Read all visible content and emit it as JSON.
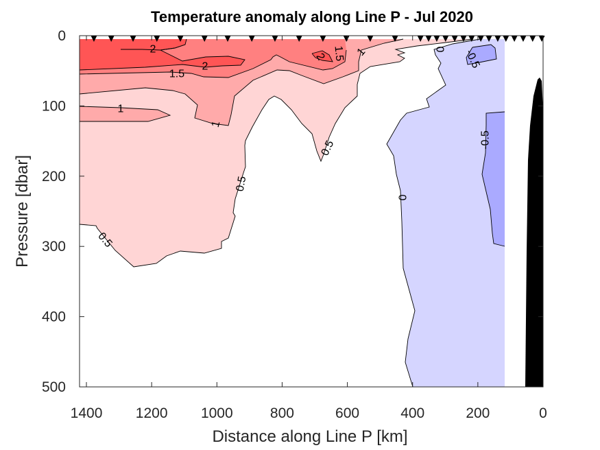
{
  "chart_data": {
    "type": "contour",
    "title": "Temperature anomaly along Line P - Jul 2020",
    "xlabel": "Distance along Line P [km]",
    "ylabel": "Pressure [dbar]",
    "xlim": [
      1417,
      0
    ],
    "x_reversed": true,
    "ylim": [
      0,
      500
    ],
    "y_reversed": true,
    "xticks": [
      "1400",
      "1200",
      "1000",
      "800",
      "600",
      "400",
      "200",
      "0"
    ],
    "yticks": [
      "0",
      "100",
      "200",
      "300",
      "400",
      "500"
    ],
    "levels": [
      -0.5,
      0,
      0.5,
      1,
      1.5,
      2
    ],
    "band_colors": {
      "below_-0.5": "#aaaaff",
      "-0.5_to_0": "#d5d5ff",
      "0_to_0.5": "#ffffff",
      "0.5_to_1": "#ffd5d5",
      "1_to_1.5": "#ffaaaa",
      "1.5_to_2": "#ff8080",
      "above_2": "#ff5555"
    },
    "bathymetry_color": "#000000",
    "station_marker": "down-triangle",
    "stations_km": [
      1377,
      1324,
      1257,
      1184,
      1112,
      1038,
      967,
      893,
      822,
      748,
      675,
      603,
      530,
      454,
      376,
      351,
      326,
      299,
      271,
      244,
      219,
      191,
      166,
      139,
      114,
      88,
      61,
      32,
      4
    ],
    "contour_labels": [
      {
        "text": "2"
      },
      {
        "text": "2"
      },
      {
        "text": "1.5"
      },
      {
        "text": "1"
      },
      {
        "text": "1"
      },
      {
        "text": "0.5"
      },
      {
        "text": "0.5"
      },
      {
        "text": "0.5"
      },
      {
        "text": "2"
      },
      {
        "text": "1.5"
      },
      {
        "text": "1"
      },
      {
        "text": "0"
      },
      {
        "text": "-0.5"
      },
      {
        "text": "-0.5"
      },
      {
        "text": "0"
      }
    ]
  }
}
